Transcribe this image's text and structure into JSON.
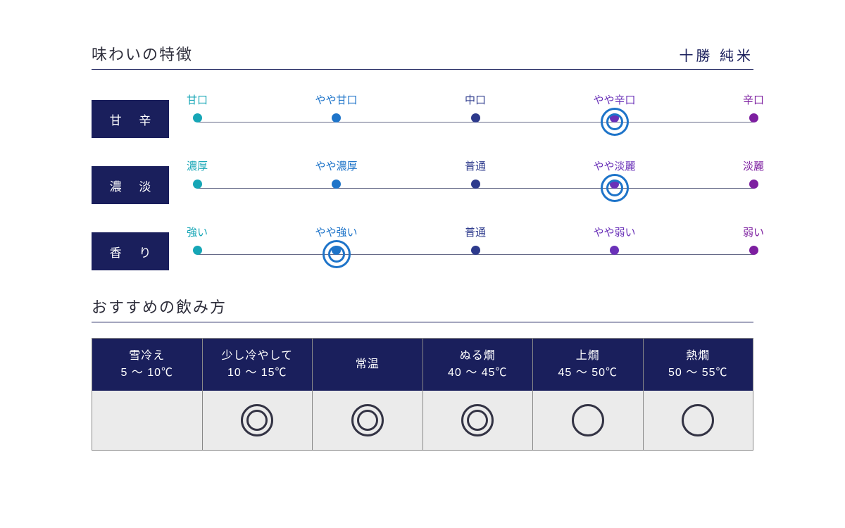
{
  "colors": {
    "navy": "#1a1f5c",
    "title_text": "#2d2d3a",
    "track": "#666a88",
    "cell_bg": "#ebebeb",
    "mark": "#333344",
    "select_ring": "#1e74c9"
  },
  "taste": {
    "title": "味わいの特徴",
    "subtitle": "十勝 純米",
    "point_colors": [
      "#16a6b6",
      "#1e74c9",
      "#2d3a8c",
      "#6a31b8",
      "#7d1fa0"
    ],
    "scales": [
      {
        "label": "甘 辛",
        "points": [
          "甘口",
          "やや甘口",
          "中口",
          "やや辛口",
          "辛口"
        ],
        "selected": 3
      },
      {
        "label": "濃 淡",
        "points": [
          "濃厚",
          "やや濃厚",
          "普通",
          "やや淡麗",
          "淡麗"
        ],
        "selected": 3
      },
      {
        "label": "香 り",
        "points": [
          "強い",
          "やや強い",
          "普通",
          "やや弱い",
          "弱い"
        ],
        "selected": 1
      }
    ]
  },
  "temperature": {
    "title": "おすすめの飲み方",
    "columns": [
      {
        "name": "雪冷え",
        "range": "5 〜 10℃",
        "rec": "none"
      },
      {
        "name": "少し冷やして",
        "range": "10 〜 15℃",
        "rec": "double"
      },
      {
        "name": "常温",
        "range": "",
        "rec": "double"
      },
      {
        "name": "ぬる燗",
        "range": "40 〜 45℃",
        "rec": "double"
      },
      {
        "name": "上燗",
        "range": "45 〜 50℃",
        "rec": "single"
      },
      {
        "name": "熱燗",
        "range": "50 〜 55℃",
        "rec": "single"
      }
    ]
  }
}
